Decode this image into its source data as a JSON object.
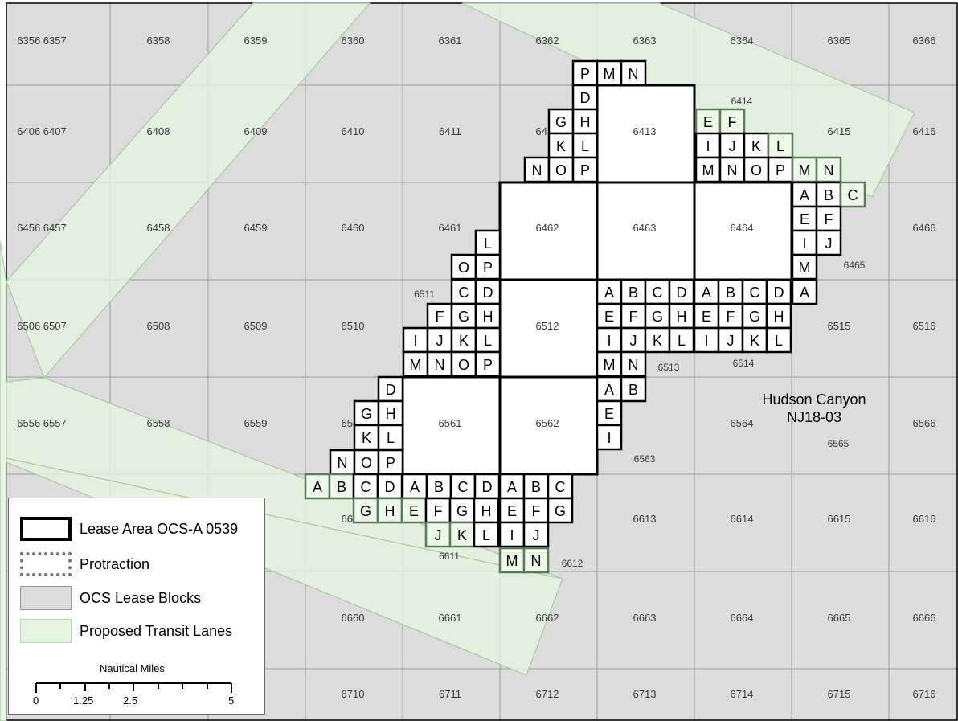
{
  "grid": {
    "rows": [
      [
        "6356 6357",
        "6358",
        "6359",
        "6360",
        "6361",
        "6362",
        "6363",
        "6364",
        "6365",
        "6366"
      ],
      [
        "6406 6407",
        "6408",
        "6409",
        "6410",
        "6411",
        "6412",
        "6413",
        "",
        "6415",
        "6416"
      ],
      [
        "6456 6457",
        "6458",
        "6459",
        "6460",
        "6461",
        "6462",
        "6463",
        "6464",
        "",
        "6466"
      ],
      [
        "6506 6507",
        "6508",
        "6509",
        "6510",
        "",
        "6512",
        "",
        "",
        "6515",
        "6516"
      ],
      [
        "6556 6557",
        "6558",
        "6559",
        "6560",
        "6561",
        "6562",
        "",
        "6564",
        "",
        "6566"
      ],
      [
        "",
        "",
        "",
        "6610",
        "",
        "",
        "6613",
        "6614",
        "6615",
        "6616"
      ],
      [
        "",
        "",
        "",
        "6660",
        "6661",
        "6662",
        "6663",
        "6664",
        "6665",
        "6666"
      ],
      [
        "",
        "",
        "",
        "6710",
        "6711",
        "6712",
        "6713",
        "6714",
        "6715",
        "6716"
      ]
    ],
    "extra_labels": {
      "b6414": "6414",
      "b6465": "6465",
      "b6511": "6511",
      "b6513": "6513",
      "b6514": "6514",
      "b6563": "6563",
      "b6565": "6565",
      "b6611": "6611",
      "b6612": "6612"
    }
  },
  "protraction": {
    "name": "Hudson Canyon",
    "code": "NJ18-03"
  },
  "lease_full_blocks": [
    "6413",
    "6462",
    "6463",
    "6464",
    "6512",
    "6561",
    "6562"
  ],
  "aliquots": [
    {
      "c": "P",
      "l": 0
    },
    {
      "c": "M",
      "l": 0
    },
    {
      "c": "N",
      "l": 0
    },
    {
      "c": "D",
      "l": 0
    },
    {
      "c": "G",
      "l": 0
    },
    {
      "c": "H",
      "l": 0
    },
    {
      "c": "K",
      "l": 0
    },
    {
      "c": "L",
      "l": 0
    },
    {
      "c": "N",
      "l": 0
    },
    {
      "c": "O",
      "l": 0
    },
    {
      "c": "P",
      "l": 0
    },
    {
      "c": "E",
      "l": 1
    },
    {
      "c": "F",
      "l": 1
    },
    {
      "c": "I",
      "l": 0
    },
    {
      "c": "J",
      "l": 0
    },
    {
      "c": "K",
      "l": 0
    },
    {
      "c": "L",
      "l": 1
    },
    {
      "c": "M",
      "l": 0
    },
    {
      "c": "N",
      "l": 0
    },
    {
      "c": "O",
      "l": 0
    },
    {
      "c": "P",
      "l": 0
    },
    {
      "c": "M",
      "l": 1
    },
    {
      "c": "N",
      "l": 1
    },
    {
      "c": "A",
      "l": 0
    },
    {
      "c": "B",
      "l": 0
    },
    {
      "c": "C",
      "l": 1
    },
    {
      "c": "E",
      "l": 0
    },
    {
      "c": "F",
      "l": 0
    },
    {
      "c": "I",
      "l": 0
    },
    {
      "c": "J",
      "l": 0
    },
    {
      "c": "M",
      "l": 0
    },
    {
      "c": "L",
      "l": 0
    },
    {
      "c": "O",
      "l": 0
    },
    {
      "c": "P",
      "l": 0
    },
    {
      "c": "C",
      "l": 0
    },
    {
      "c": "D",
      "l": 0
    },
    {
      "c": "F",
      "l": 0
    },
    {
      "c": "G",
      "l": 0
    },
    {
      "c": "H",
      "l": 0
    },
    {
      "c": "I",
      "l": 0
    },
    {
      "c": "J",
      "l": 0
    },
    {
      "c": "K",
      "l": 0
    },
    {
      "c": "L",
      "l": 0
    },
    {
      "c": "M",
      "l": 0
    },
    {
      "c": "N",
      "l": 0
    },
    {
      "c": "O",
      "l": 0
    },
    {
      "c": "P",
      "l": 0
    },
    {
      "c": "A",
      "l": 0
    },
    {
      "c": "B",
      "l": 0
    },
    {
      "c": "C",
      "l": 0
    },
    {
      "c": "D",
      "l": 0
    },
    {
      "c": "A",
      "l": 0
    },
    {
      "c": "B",
      "l": 0
    },
    {
      "c": "C",
      "l": 0
    },
    {
      "c": "D",
      "l": 0
    },
    {
      "c": "A",
      "l": 0
    },
    {
      "c": "E",
      "l": 0
    },
    {
      "c": "F",
      "l": 0
    },
    {
      "c": "G",
      "l": 0
    },
    {
      "c": "H",
      "l": 0
    },
    {
      "c": "E",
      "l": 0
    },
    {
      "c": "F",
      "l": 0
    },
    {
      "c": "G",
      "l": 0
    },
    {
      "c": "H",
      "l": 0
    },
    {
      "c": "I",
      "l": 0
    },
    {
      "c": "J",
      "l": 0
    },
    {
      "c": "K",
      "l": 0
    },
    {
      "c": "L",
      "l": 0
    },
    {
      "c": "I",
      "l": 0
    },
    {
      "c": "J",
      "l": 0
    },
    {
      "c": "K",
      "l": 0
    },
    {
      "c": "L",
      "l": 0
    },
    {
      "c": "M",
      "l": 0
    },
    {
      "c": "N",
      "l": 0
    },
    {
      "c": "A",
      "l": 0
    },
    {
      "c": "B",
      "l": 0
    },
    {
      "c": "E",
      "l": 0
    },
    {
      "c": "I",
      "l": 0
    },
    {
      "c": "D",
      "l": 0
    },
    {
      "c": "G",
      "l": 0
    },
    {
      "c": "H",
      "l": 0
    },
    {
      "c": "K",
      "l": 0
    },
    {
      "c": "L",
      "l": 0
    },
    {
      "c": "N",
      "l": 0
    },
    {
      "c": "O",
      "l": 0
    },
    {
      "c": "P",
      "l": 0
    },
    {
      "c": "A",
      "l": 1
    },
    {
      "c": "B",
      "l": 1
    },
    {
      "c": "C",
      "l": 0
    },
    {
      "c": "D",
      "l": 0
    },
    {
      "c": "A",
      "l": 0
    },
    {
      "c": "B",
      "l": 0
    },
    {
      "c": "C",
      "l": 0
    },
    {
      "c": "D",
      "l": 0
    },
    {
      "c": "A",
      "l": 0
    },
    {
      "c": "B",
      "l": 0
    },
    {
      "c": "C",
      "l": 0
    },
    {
      "c": "G",
      "l": 1
    },
    {
      "c": "H",
      "l": 1
    },
    {
      "c": "E",
      "l": 1
    },
    {
      "c": "F",
      "l": 0
    },
    {
      "c": "G",
      "l": 0
    },
    {
      "c": "H",
      "l": 0
    },
    {
      "c": "E",
      "l": 0
    },
    {
      "c": "F",
      "l": 0
    },
    {
      "c": "G",
      "l": 0
    },
    {
      "c": "J",
      "l": 1
    },
    {
      "c": "K",
      "l": 1
    },
    {
      "c": "L",
      "l": 0
    },
    {
      "c": "I",
      "l": 0
    },
    {
      "c": "J",
      "l": 0
    },
    {
      "c": "M",
      "l": 1
    },
    {
      "c": "N",
      "l": 1
    }
  ],
  "legend": {
    "items": [
      {
        "label": "Lease Area OCS-A 0539",
        "kind": "lease"
      },
      {
        "label": "Protraction",
        "kind": "protraction"
      },
      {
        "label": "OCS Lease Blocks",
        "kind": "ocs"
      },
      {
        "label": "Proposed Transit Lanes",
        "kind": "lane"
      }
    ],
    "scale_title": "Nautical Miles",
    "scale_labels": [
      "0",
      "1.25",
      "2.5",
      "5"
    ]
  },
  "colors": {
    "ocs_fill": "#dcdcdc",
    "grid_line": "#9c9c9c",
    "lane_fill": "#e4f3df",
    "lane_outline": "#a9c8a4",
    "lease_outline": "#000000",
    "lane_aliquot_outline": "#5a7a5a"
  }
}
